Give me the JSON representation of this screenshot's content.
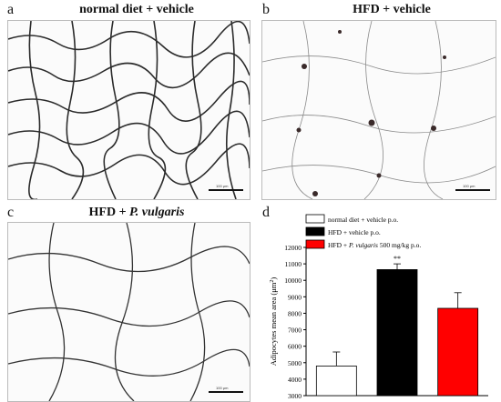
{
  "panels": [
    {
      "letter": "a",
      "title": "normal diet + vehicle",
      "title_italic": "",
      "scale": "100 μm"
    },
    {
      "letter": "b",
      "title": "HFD + vehicle",
      "title_italic": "",
      "scale": "100 μm"
    },
    {
      "letter": "c",
      "title": "HFD + ",
      "title_italic": "P. vulgaris",
      "scale": "100 μm"
    },
    {
      "letter": "d"
    }
  ],
  "chart_data": {
    "type": "bar",
    "categories": [
      "normal diet + vehicle p.o.",
      "HFD + vehicle p.o.",
      "HFD + P. vulgaris 500 mg/kg p.o."
    ],
    "values": [
      4800,
      10650,
      8300
    ],
    "errors": [
      850,
      350,
      950
    ],
    "annotations": [
      "",
      "**",
      ""
    ],
    "colors": [
      "#ffffff",
      "#000000",
      "#ff0000"
    ],
    "ylabel": "Adipocytes mean area (μm²)",
    "ylim": [
      3000,
      12000
    ],
    "yticks": [
      3000,
      4000,
      5000,
      6000,
      7000,
      8000,
      9000,
      10000,
      11000,
      12000
    ],
    "legend": {
      "placement": "top-left",
      "entries": [
        {
          "text": "normal diet + vehicle p.o.",
          "color": "#ffffff"
        },
        {
          "text": "HFD + vehicle p.o.",
          "color": "#000000"
        },
        {
          "text": "HFD + P. vulgaris 500 mg/kg p.o.",
          "color": "#ff0000"
        }
      ]
    }
  }
}
